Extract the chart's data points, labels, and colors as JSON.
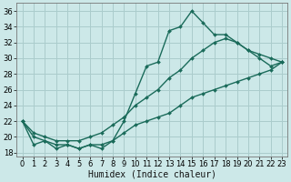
{
  "bg_color": "#cce8e8",
  "grid_color": "#aacccc",
  "line_color": "#1a6b5a",
  "line_width": 1.0,
  "marker": "D",
  "marker_size": 2.0,
  "xlabel": "Humidex (Indice chaleur)",
  "xlabel_fontsize": 7,
  "tick_fontsize": 6,
  "ylim": [
    17.5,
    37
  ],
  "xlim": [
    -0.5,
    23.5
  ],
  "yticks": [
    18,
    20,
    22,
    24,
    26,
    28,
    30,
    32,
    34,
    36
  ],
  "xticks": [
    0,
    1,
    2,
    3,
    4,
    5,
    6,
    7,
    8,
    9,
    10,
    11,
    12,
    13,
    14,
    15,
    16,
    17,
    18,
    19,
    20,
    21,
    22,
    23
  ],
  "line1_x": [
    0,
    1,
    2,
    3,
    4,
    5,
    6,
    7,
    8,
    9,
    10,
    11,
    12,
    13,
    14,
    15,
    16,
    17,
    18,
    19,
    20,
    21,
    22,
    23
  ],
  "line1_y": [
    22,
    19,
    19.5,
    18.5,
    19,
    18.5,
    19,
    18.5,
    19.5,
    22,
    25.5,
    29,
    29.5,
    33.5,
    34,
    36,
    34.5,
    33,
    33,
    32,
    31,
    30,
    29,
    29.5
  ],
  "line2_x": [
    0,
    1,
    2,
    3,
    4,
    5,
    6,
    7,
    8,
    9,
    10,
    11,
    12,
    13,
    14,
    15,
    16,
    17,
    18,
    19,
    20,
    21,
    22,
    23
  ],
  "line2_y": [
    22,
    20.5,
    20,
    19.5,
    19.5,
    19.5,
    20,
    20.5,
    21.5,
    22.5,
    24,
    25,
    26,
    27.5,
    28.5,
    30,
    31,
    32,
    32.5,
    32,
    31,
    30.5,
    30,
    29.5
  ],
  "line3_x": [
    0,
    1,
    2,
    3,
    4,
    5,
    6,
    7,
    8,
    9,
    10,
    11,
    12,
    13,
    14,
    15,
    16,
    17,
    18,
    19,
    20,
    21,
    22,
    23
  ],
  "line3_y": [
    22,
    20,
    19.5,
    19,
    19,
    18.5,
    19,
    19,
    19.5,
    20.5,
    21.5,
    22,
    22.5,
    23,
    24,
    25,
    25.5,
    26,
    26.5,
    27,
    27.5,
    28,
    28.5,
    29.5
  ]
}
